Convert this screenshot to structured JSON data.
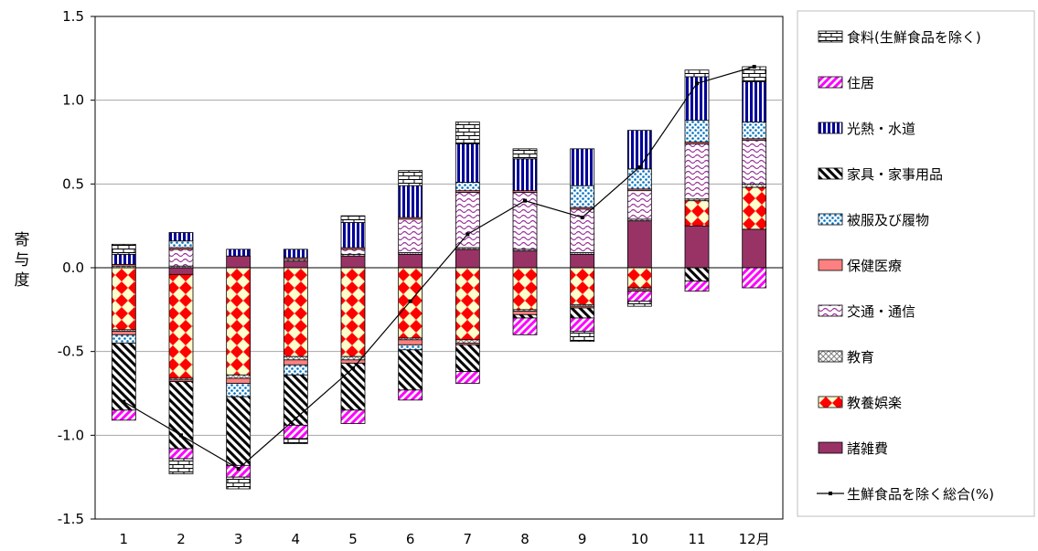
{
  "chart_data": {
    "type": "bar",
    "stacked": true,
    "ylabel": "寄与度",
    "ylim": [
      -1.5,
      1.5
    ],
    "yticks": [
      "1.5",
      "1.0",
      "0.5",
      "0.0",
      "-0.5",
      "-1.0",
      "-1.5"
    ],
    "categories": [
      "1",
      "2",
      "3",
      "4",
      "5",
      "6",
      "7",
      "8",
      "9",
      "10",
      "11",
      "12月"
    ],
    "grid": "horizontal",
    "legend_position": "right",
    "series": [
      {
        "name": "食料(生鮮食品を除く)",
        "pattern": "brick",
        "values": [
          0.06,
          0.0,
          0.0,
          0.0,
          0.04,
          0.09,
          0.13,
          0.06,
          0.0,
          0.0,
          0.04,
          0.09
        ],
        "neg_values": [
          0.0,
          -0.09,
          -0.07,
          -0.03,
          0.0,
          0.0,
          0.0,
          0.0,
          -0.06,
          -0.03,
          0.0,
          0.0
        ]
      },
      {
        "name": "住居",
        "pattern": "pink-diagonal",
        "values": [
          0,
          0,
          0,
          0,
          0,
          0,
          0,
          0,
          0,
          0,
          0,
          0
        ],
        "neg_values": [
          -0.06,
          -0.06,
          -0.07,
          -0.08,
          -0.08,
          -0.06,
          -0.07,
          -0.1,
          -0.08,
          -0.06,
          -0.06,
          -0.12
        ]
      },
      {
        "name": "光熱・水道",
        "pattern": "blue-vertical",
        "values": [
          0.06,
          0.05,
          0.04,
          0.05,
          0.15,
          0.19,
          0.23,
          0.19,
          0.22,
          0.23,
          0.26,
          0.24
        ],
        "neg_values": [
          0,
          0,
          0,
          0,
          0,
          0,
          0,
          0,
          0,
          0,
          0,
          0
        ]
      },
      {
        "name": "家具・家事用品",
        "pattern": "black-diagonal",
        "values": [
          0,
          0,
          0,
          0,
          0,
          0,
          0,
          0,
          0,
          0,
          0,
          0
        ],
        "neg_values": [
          -0.4,
          -0.4,
          -0.41,
          -0.3,
          -0.28,
          -0.24,
          -0.16,
          -0.02,
          -0.06,
          0.0,
          -0.08,
          0.0
        ]
      },
      {
        "name": "被服及び履物",
        "pattern": "blue-dots",
        "values": [
          0.0,
          0.04,
          0.0,
          0.0,
          0.0,
          0.0,
          0.05,
          0.0,
          0.13,
          0.12,
          0.13,
          0.1
        ],
        "neg_values": [
          -0.05,
          0.0,
          -0.08,
          -0.06,
          0.0,
          -0.03,
          0.0,
          0.0,
          0.0,
          0.0,
          0.0,
          0.0
        ]
      },
      {
        "name": "保健医療",
        "pattern": "salmon",
        "values": [
          0.01,
          0.01,
          0.0,
          0.01,
          0.01,
          0.01,
          0.01,
          0.01,
          0.01,
          0.01,
          0.01,
          0.01
        ],
        "neg_values": [
          -0.02,
          -0.01,
          -0.03,
          -0.03,
          -0.02,
          -0.03,
          -0.01,
          -0.02,
          -0.01,
          -0.01,
          0.0,
          0.0
        ]
      },
      {
        "name": "交通・通信",
        "pattern": "purple-wave",
        "values": [
          0.0,
          0.1,
          0.0,
          0.0,
          0.03,
          0.2,
          0.33,
          0.34,
          0.26,
          0.17,
          0.33,
          0.26
        ],
        "neg_values": [
          0,
          0,
          0,
          0,
          0,
          0,
          0,
          0,
          0,
          0,
          0,
          0
        ]
      },
      {
        "name": "教育",
        "pattern": "gray-cross",
        "values": [
          0.01,
          0.01,
          0.0,
          0.01,
          0.01,
          0.01,
          0.01,
          0.01,
          0.01,
          0.01,
          0.01,
          0.02
        ],
        "neg_values": [
          -0.01,
          -0.01,
          -0.02,
          -0.02,
          -0.02,
          -0.01,
          -0.02,
          -0.01,
          -0.01,
          -0.01,
          0.0,
          0.0
        ]
      },
      {
        "name": "教養娯楽",
        "pattern": "red-diamond",
        "values": [
          0.0,
          0.0,
          0.0,
          0.0,
          0.0,
          0.0,
          0.0,
          0.0,
          0.0,
          0.0,
          0.15,
          0.25
        ],
        "neg_values": [
          -0.37,
          -0.62,
          -0.64,
          -0.53,
          -0.53,
          -0.42,
          -0.43,
          -0.25,
          -0.22,
          -0.12,
          0.0,
          0.0
        ]
      },
      {
        "name": "諸雑費",
        "pattern": "maroon",
        "values": [
          0.0,
          0.0,
          0.07,
          0.04,
          0.07,
          0.08,
          0.11,
          0.1,
          0.08,
          0.28,
          0.25,
          0.23
        ],
        "neg_values": [
          0.0,
          -0.04,
          0.0,
          0.0,
          0.0,
          0.0,
          0.0,
          0.0,
          0.0,
          0.0,
          0.0,
          0.0
        ]
      }
    ],
    "line": {
      "name": "生鮮食品を除く総合(%)",
      "values": [
        -0.8,
        -1.0,
        -1.2,
        -0.9,
        -0.6,
        -0.2,
        0.2,
        0.4,
        0.3,
        0.6,
        1.1,
        1.2
      ]
    }
  }
}
